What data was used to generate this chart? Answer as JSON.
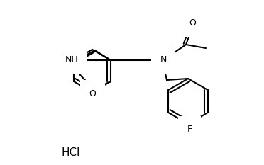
{
  "line_width": 1.5,
  "font_size": 9,
  "bg_color": "#ffffff",
  "line_color": "#000000",
  "hcl_text": "HCl",
  "nh_label": "NH",
  "o_label": "O",
  "n_label": "N",
  "o2_label": "O",
  "f_label": "F",
  "figw": 3.72,
  "figh": 2.33,
  "dpi": 100
}
